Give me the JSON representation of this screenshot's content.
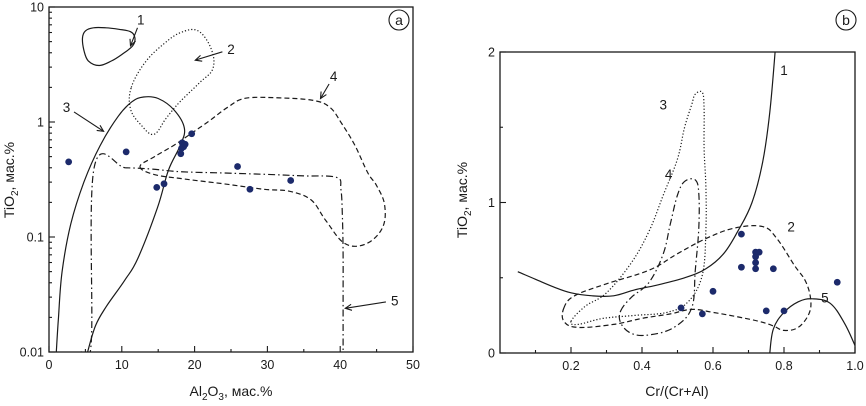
{
  "chart_data": [
    {
      "type": "scatter",
      "panel_label": "a",
      "title": "",
      "xlabel": {
        "main": "Al",
        "sub1": "2",
        "mid": "O",
        "sub2": "3",
        "tail": ", мас.%"
      },
      "ylabel": {
        "main": "TiO",
        "sub": "2",
        "tail": ", мас.%"
      },
      "xlim": [
        0,
        50
      ],
      "ylim": [
        0.01,
        10
      ],
      "yscale": "log",
      "x_ticks": [
        0,
        10,
        20,
        30,
        40,
        50
      ],
      "x_tick_labels": [
        "0",
        "10",
        "20",
        "30",
        "40",
        "50"
      ],
      "y_ticks": [
        0.01,
        0.1,
        1,
        10
      ],
      "y_tick_labels": [
        "0.01",
        "0.1",
        "1",
        "10"
      ],
      "points": [
        {
          "x": 2.7,
          "y": 0.45
        },
        {
          "x": 10.6,
          "y": 0.55
        },
        {
          "x": 14.8,
          "y": 0.27
        },
        {
          "x": 15.8,
          "y": 0.29
        },
        {
          "x": 18.2,
          "y": 0.59
        },
        {
          "x": 18.3,
          "y": 0.66
        },
        {
          "x": 18.5,
          "y": 0.61
        },
        {
          "x": 18.1,
          "y": 0.53
        },
        {
          "x": 18.7,
          "y": 0.64
        },
        {
          "x": 19.6,
          "y": 0.79
        },
        {
          "x": 25.9,
          "y": 0.41
        },
        {
          "x": 27.6,
          "y": 0.26
        },
        {
          "x": 33.2,
          "y": 0.31
        }
      ],
      "fields": [
        {
          "id": "1",
          "style": "solid",
          "path": [
            [
              4.6,
              5.4
            ],
            [
              5.0,
              6.2
            ],
            [
              6.1,
              6.6
            ],
            [
              7.8,
              6.6
            ],
            [
              9.6,
              6.4
            ],
            [
              11.2,
              6.1
            ],
            [
              11.8,
              5.4
            ],
            [
              11.5,
              4.6
            ],
            [
              10.1,
              3.9
            ],
            [
              8.6,
              3.4
            ],
            [
              6.9,
              3.1
            ],
            [
              5.4,
              3.4
            ],
            [
              4.8,
              4.2
            ],
            [
              4.6,
              5.4
            ]
          ],
          "closed": true
        },
        {
          "id": "2",
          "style": "dotted",
          "path": [
            [
              11.3,
              2.0
            ],
            [
              13.2,
              3.3
            ],
            [
              15.8,
              4.8
            ],
            [
              18.1,
              6.0
            ],
            [
              20.5,
              6.2
            ],
            [
              22.3,
              4.3
            ],
            [
              22.5,
              2.9
            ],
            [
              20.7,
              2.2
            ],
            [
              18.0,
              1.5
            ],
            [
              16.1,
              1.08
            ],
            [
              14.4,
              0.78
            ],
            [
              12.6,
              0.95
            ],
            [
              11.2,
              1.3
            ],
            [
              11.3,
              2.0
            ]
          ],
          "closed": true
        },
        {
          "id": "3",
          "style": "solid",
          "path": [
            [
              1.0,
              0.01
            ],
            [
              1.3,
              0.02
            ],
            [
              1.8,
              0.05
            ],
            [
              3.0,
              0.13
            ],
            [
              4.8,
              0.3
            ],
            [
              7.0,
              0.62
            ],
            [
              9.5,
              1.12
            ],
            [
              11.4,
              1.5
            ],
            [
              13.0,
              1.65
            ],
            [
              15.0,
              1.6
            ],
            [
              17.2,
              1.27
            ],
            [
              18.6,
              0.88
            ],
            [
              18.0,
              0.62
            ],
            [
              16.4,
              0.38
            ],
            [
              14.9,
              0.18
            ],
            [
              12.2,
              0.065
            ],
            [
              10.4,
              0.042
            ],
            [
              7.9,
              0.025
            ],
            [
              6.4,
              0.017
            ],
            [
              5.3,
              0.01
            ]
          ],
          "closed": false
        },
        {
          "id": "4",
          "style": "dashed",
          "path": [
            [
              12.5,
              0.41
            ],
            [
              14.4,
              0.35
            ],
            [
              18.5,
              0.32
            ],
            [
              24.0,
              0.29
            ],
            [
              29.5,
              0.26
            ],
            [
              33.0,
              0.25
            ],
            [
              36.0,
              0.21
            ],
            [
              38.0,
              0.14
            ],
            [
              40.6,
              0.088
            ],
            [
              43.5,
              0.087
            ],
            [
              45.8,
              0.12
            ],
            [
              46.1,
              0.19
            ],
            [
              45.0,
              0.28
            ],
            [
              43.8,
              0.36
            ],
            [
              42.0,
              0.63
            ],
            [
              40.2,
              0.97
            ],
            [
              38.6,
              1.34
            ],
            [
              36.3,
              1.54
            ],
            [
              31.7,
              1.62
            ],
            [
              27.0,
              1.61
            ],
            [
              24.6,
              1.35
            ],
            [
              22.0,
              1.02
            ],
            [
              19.6,
              0.8
            ],
            [
              17.2,
              0.63
            ],
            [
              14.5,
              0.5
            ],
            [
              12.5,
              0.41
            ]
          ],
          "closed": true
        },
        {
          "id": "5",
          "style": "dashdot",
          "path": [
            [
              4.4,
              0.01
            ],
            [
              5.8,
              0.012
            ],
            [
              6.2,
              0.4
            ],
            [
              10.5,
              0.4
            ],
            [
              14.0,
              0.39
            ],
            [
              18.0,
              0.37
            ],
            [
              24.0,
              0.36
            ],
            [
              30.0,
              0.35
            ],
            [
              35.0,
              0.34
            ],
            [
              39.5,
              0.33
            ],
            [
              40.1,
              0.26
            ],
            [
              40.3,
              0.15
            ],
            [
              40.4,
              0.07
            ],
            [
              40.4,
              0.03
            ],
            [
              40.4,
              0.012
            ],
            [
              40.4,
              0.01
            ]
          ],
          "closed": false
        }
      ],
      "annotations": [
        {
          "text": "1",
          "x": 12.6,
          "y": 7.8,
          "tip": [
            11.2,
            4.6
          ]
        },
        {
          "text": "2",
          "x": 25.0,
          "y": 4.3,
          "tip": [
            20.1,
            3.45
          ]
        },
        {
          "text": "3",
          "x": 2.4,
          "y": 1.35,
          "tip": [
            7.5,
            0.83
          ]
        },
        {
          "text": "4",
          "x": 39.1,
          "y": 2.5,
          "tip": [
            37.3,
            1.6
          ]
        },
        {
          "text": "5",
          "x": 47.5,
          "y": 0.028,
          "tip": [
            40.7,
            0.024
          ]
        }
      ]
    },
    {
      "type": "scatter",
      "panel_label": "b",
      "title": "",
      "xlabel": {
        "main": "Cr/(Cr+Al)"
      },
      "ylabel": {
        "main": "TiO",
        "sub": "2",
        "tail": ", мас.%"
      },
      "xlim": [
        0.0,
        1.0
      ],
      "ylim": [
        0,
        2
      ],
      "yscale": "linear",
      "x_ticks": [
        0.2,
        0.4,
        0.6,
        0.8,
        1.0
      ],
      "x_tick_labels": [
        "0.2",
        "0.4",
        "0.6",
        "0.8",
        "1.0"
      ],
      "y_ticks": [
        0,
        1,
        2
      ],
      "y_tick_labels": [
        "0",
        "1",
        "2"
      ],
      "points": [
        {
          "x": 0.51,
          "y": 0.3
        },
        {
          "x": 0.57,
          "y": 0.26
        },
        {
          "x": 0.6,
          "y": 0.41
        },
        {
          "x": 0.68,
          "y": 0.79
        },
        {
          "x": 0.68,
          "y": 0.57
        },
        {
          "x": 0.72,
          "y": 0.67
        },
        {
          "x": 0.72,
          "y": 0.64
        },
        {
          "x": 0.72,
          "y": 0.6
        },
        {
          "x": 0.72,
          "y": 0.56
        },
        {
          "x": 0.73,
          "y": 0.67
        },
        {
          "x": 0.77,
          "y": 0.56
        },
        {
          "x": 0.75,
          "y": 0.28
        },
        {
          "x": 0.8,
          "y": 0.28
        },
        {
          "x": 0.95,
          "y": 0.47
        }
      ],
      "fields": [
        {
          "id": "1",
          "style": "solid",
          "path": [
            [
              0.05,
              0.54
            ],
            [
              0.1,
              0.49
            ],
            [
              0.15,
              0.44
            ],
            [
              0.2,
              0.4
            ],
            [
              0.26,
              0.38
            ],
            [
              0.32,
              0.38
            ],
            [
              0.38,
              0.42
            ],
            [
              0.44,
              0.45
            ],
            [
              0.52,
              0.5
            ],
            [
              0.58,
              0.56
            ],
            [
              0.63,
              0.66
            ],
            [
              0.67,
              0.81
            ],
            [
              0.71,
              1.0
            ],
            [
              0.74,
              1.27
            ],
            [
              0.76,
              1.6
            ],
            [
              0.775,
              2.0
            ]
          ],
          "closed": false
        },
        {
          "id": "2",
          "style": "dashed",
          "path": [
            [
              0.18,
              0.3
            ],
            [
              0.21,
              0.38
            ],
            [
              0.3,
              0.46
            ],
            [
              0.42,
              0.55
            ],
            [
              0.5,
              0.66
            ],
            [
              0.58,
              0.76
            ],
            [
              0.66,
              0.83
            ],
            [
              0.74,
              0.84
            ],
            [
              0.78,
              0.76
            ],
            [
              0.83,
              0.58
            ],
            [
              0.86,
              0.48
            ],
            [
              0.875,
              0.36
            ],
            [
              0.87,
              0.26
            ],
            [
              0.84,
              0.17
            ],
            [
              0.8,
              0.15
            ],
            [
              0.77,
              0.18
            ],
            [
              0.73,
              0.21
            ],
            [
              0.67,
              0.24
            ],
            [
              0.6,
              0.27
            ],
            [
              0.54,
              0.29
            ],
            [
              0.48,
              0.26
            ],
            [
              0.4,
              0.23
            ],
            [
              0.32,
              0.19
            ],
            [
              0.22,
              0.17
            ],
            [
              0.18,
              0.21
            ],
            [
              0.18,
              0.3
            ]
          ],
          "closed": true
        },
        {
          "id": "3",
          "style": "dotted",
          "path": [
            [
              0.2,
              0.21
            ],
            [
              0.24,
              0.31
            ],
            [
              0.3,
              0.4
            ],
            [
              0.37,
              0.6
            ],
            [
              0.42,
              0.81
            ],
            [
              0.46,
              1.05
            ],
            [
              0.5,
              1.29
            ],
            [
              0.52,
              1.5
            ],
            [
              0.54,
              1.65
            ],
            [
              0.55,
              1.72
            ],
            [
              0.57,
              1.73
            ],
            [
              0.575,
              1.62
            ],
            [
              0.575,
              1.36
            ],
            [
              0.58,
              1.1
            ],
            [
              0.58,
              0.82
            ],
            [
              0.57,
              0.52
            ],
            [
              0.53,
              0.34
            ],
            [
              0.47,
              0.27
            ],
            [
              0.38,
              0.25
            ],
            [
              0.29,
              0.23
            ],
            [
              0.22,
              0.19
            ],
            [
              0.2,
              0.21
            ]
          ],
          "closed": true
        },
        {
          "id": "4",
          "style": "dashdot",
          "path": [
            [
              0.34,
              0.28
            ],
            [
              0.37,
              0.37
            ],
            [
              0.42,
              0.47
            ],
            [
              0.46,
              0.66
            ],
            [
              0.48,
              0.86
            ],
            [
              0.5,
              1.05
            ],
            [
              0.52,
              1.14
            ],
            [
              0.55,
              1.15
            ],
            [
              0.56,
              1.06
            ],
            [
              0.56,
              0.83
            ],
            [
              0.55,
              0.55
            ],
            [
              0.54,
              0.3
            ],
            [
              0.49,
              0.17
            ],
            [
              0.42,
              0.12
            ],
            [
              0.37,
              0.13
            ],
            [
              0.34,
              0.2
            ],
            [
              0.34,
              0.28
            ]
          ],
          "closed": true
        },
        {
          "id": "5",
          "style": "solid",
          "path": [
            [
              0.76,
              0.0
            ],
            [
              0.77,
              0.16
            ],
            [
              0.8,
              0.27
            ],
            [
              0.84,
              0.34
            ],
            [
              0.88,
              0.36
            ],
            [
              0.93,
              0.33
            ],
            [
              0.97,
              0.2
            ],
            [
              1.0,
              0.05
            ]
          ],
          "closed": false
        }
      ],
      "annotations": [
        {
          "text": "1",
          "x": 0.8,
          "y": 1.88
        },
        {
          "text": "2",
          "x": 0.82,
          "y": 0.84
        },
        {
          "text": "3",
          "x": 0.46,
          "y": 1.65
        },
        {
          "text": "4",
          "x": 0.475,
          "y": 1.19
        },
        {
          "text": "5",
          "x": 0.915,
          "y": 0.37
        }
      ]
    }
  ]
}
